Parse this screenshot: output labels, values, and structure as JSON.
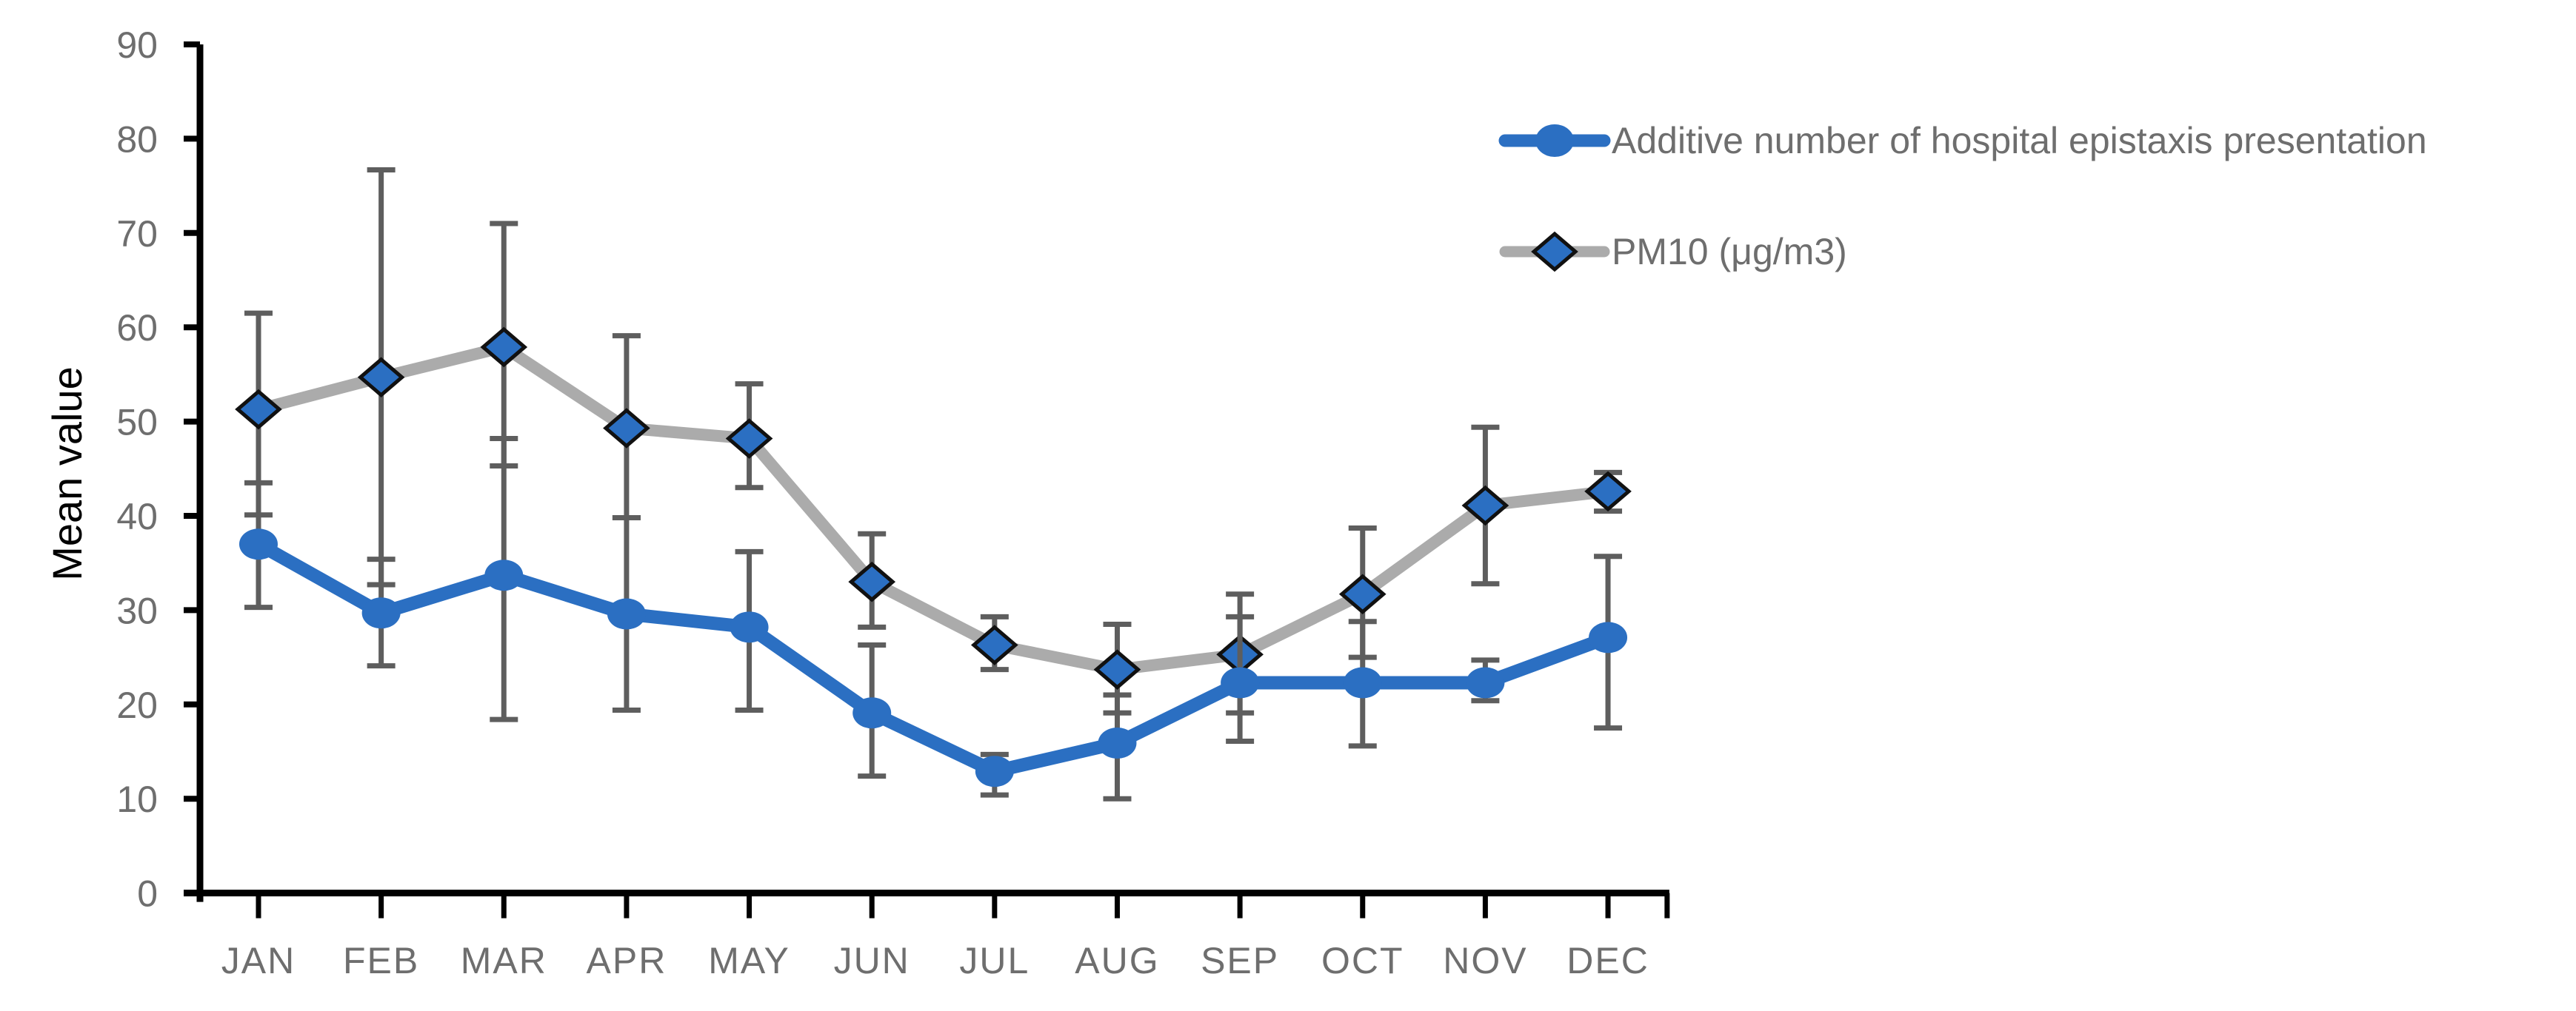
{
  "chart_data": {
    "type": "line",
    "ylabel": "Mean value",
    "categories": [
      "JAN",
      "FEB",
      "MAR",
      "APR",
      "MAY",
      "JUN",
      "JUL",
      "AUG",
      "SEP",
      "OCT",
      "NOV",
      "DEC"
    ],
    "ylim": [
      0,
      90
    ],
    "ytick_step": 10,
    "yticks": [
      0,
      10,
      20,
      30,
      40,
      50,
      60,
      70,
      80,
      90
    ],
    "grid": false,
    "legend_position": "top-right",
    "background_color": "#ffffff",
    "axis_color": "#000000",
    "tick_label_color": "#6e6e6e",
    "error_bar_color": "#5e5e5e",
    "series": [
      {
        "name": "Additive number of hospital epistaxis presentation",
        "marker": "circle",
        "color": "#2b6fc2",
        "values": [
          37.0,
          29.7,
          33.7,
          29.6,
          28.2,
          19.1,
          12.9,
          15.9,
          22.3,
          22.3,
          22.3,
          27.1
        ],
        "err_low": [
          30.3,
          24.1,
          18.4,
          19.4,
          19.4,
          12.4,
          10.4,
          10.0,
          16.1,
          15.6,
          20.4,
          17.5
        ],
        "err_high": [
          43.5,
          35.4,
          48.2,
          39.8,
          36.2,
          26.3,
          14.7,
          21.0,
          29.3,
          28.8,
          24.7,
          35.7
        ]
      },
      {
        "name": "PM10 (μg/m3)",
        "marker": "diamond",
        "color": "#ababab",
        "marker_fill": "#2b6fc2",
        "marker_outline": "#111111",
        "values": [
          51.3,
          54.7,
          57.9,
          49.3,
          48.2,
          33.0,
          26.3,
          23.7,
          25.3,
          31.7,
          41.1,
          42.6
        ],
        "err_low": [
          40.1,
          32.7,
          45.3,
          39.8,
          43.0,
          28.2,
          23.7,
          19.1,
          19.1,
          25.0,
          32.8,
          40.5
        ],
        "err_high": [
          61.5,
          76.7,
          71.0,
          59.1,
          54.0,
          38.1,
          29.3,
          28.5,
          31.7,
          38.7,
          49.4,
          44.6
        ]
      }
    ]
  }
}
